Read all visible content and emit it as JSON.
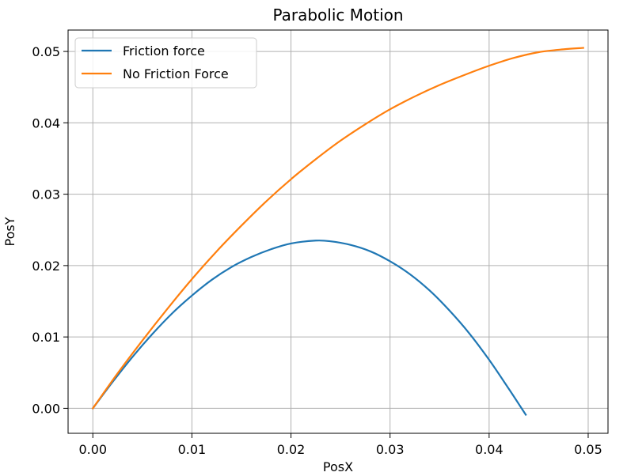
{
  "chart_data": {
    "type": "line",
    "title": "Parabolic Motion",
    "xlabel": "PosX",
    "ylabel": "PosY",
    "xlim": [
      -0.0025,
      0.052
    ],
    "ylim": [
      -0.0035,
      0.053
    ],
    "xticks": [
      0.0,
      0.01,
      0.02,
      0.03,
      0.04,
      0.05
    ],
    "xtick_labels": [
      "0.00",
      "0.01",
      "0.02",
      "0.03",
      "0.04",
      "0.05"
    ],
    "yticks": [
      0.0,
      0.01,
      0.02,
      0.03,
      0.04,
      0.05
    ],
    "ytick_labels": [
      "0.00",
      "0.01",
      "0.02",
      "0.03",
      "0.04",
      "0.05"
    ],
    "grid": true,
    "legend_position": "top-left",
    "series": [
      {
        "name": "Friction force",
        "color": "#1f77b4",
        "x": [
          0.0,
          0.002,
          0.004,
          0.006,
          0.008,
          0.01,
          0.012,
          0.014,
          0.016,
          0.018,
          0.02,
          0.0225,
          0.024,
          0.026,
          0.028,
          0.03,
          0.032,
          0.034,
          0.036,
          0.038,
          0.04,
          0.042,
          0.0437
        ],
        "y": [
          0.0,
          0.0037,
          0.0072,
          0.0104,
          0.0133,
          0.0158,
          0.018,
          0.0198,
          0.0212,
          0.0223,
          0.0231,
          0.0235,
          0.0234,
          0.0229,
          0.022,
          0.0206,
          0.0188,
          0.0165,
          0.0137,
          0.0105,
          0.0068,
          0.0027,
          -0.0009
        ]
      },
      {
        "name": "No Friction Force",
        "color": "#ff7f0e",
        "x": [
          0.0,
          0.0025,
          0.005,
          0.0075,
          0.01,
          0.0125,
          0.015,
          0.0175,
          0.02,
          0.0225,
          0.025,
          0.0275,
          0.03,
          0.0325,
          0.035,
          0.0375,
          0.04,
          0.0425,
          0.045,
          0.0475,
          0.0495
        ],
        "y": [
          0.0,
          0.0049,
          0.0095,
          0.0139,
          0.0181,
          0.022,
          0.0256,
          0.029,
          0.0321,
          0.0349,
          0.0375,
          0.0398,
          0.0419,
          0.0437,
          0.0453,
          0.0467,
          0.048,
          0.0491,
          0.0499,
          0.0503,
          0.0505
        ]
      }
    ]
  }
}
